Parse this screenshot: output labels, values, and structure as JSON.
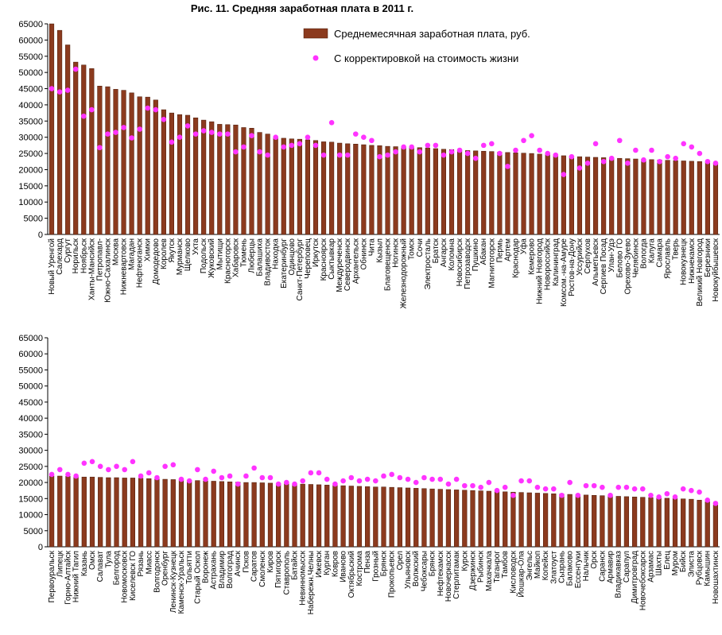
{
  "chart_data": [
    {
      "type": "bar",
      "title": "Рис. 11. Средняя заработная плата в 2011 г.",
      "categories": [
        "Новый Уренгой",
        "Салехард",
        "Сургут",
        "Норильск",
        "Ноябрьск",
        "Ханты-Мансийск",
        "Петропавл-",
        "Южно-Сахалинск",
        "Москва",
        "Нижневартовск",
        "Магадан",
        "Нефтеюганск",
        "Химки",
        "Домодедово",
        "Королев",
        "Якутск",
        "Мурманск",
        "Щелково",
        "Ухта",
        "Подольск",
        "Жуковский",
        "Мытищи",
        "Красногорск",
        "Хабаровск",
        "Тюмень",
        "Люберцы",
        "Балашиха",
        "Владивосток",
        "Находка",
        "Екатеринбург",
        "Одинцово",
        "Санкт-Петербург",
        "Череповец",
        "Иркутск",
        "Красноярск",
        "Сыктывкар",
        "Междуреченск",
        "Северодвинск",
        "Архангельск",
        "Обнинск",
        "Чита",
        "Кызыл",
        "Благовещенск",
        "Ногинск",
        "Железнодорожный",
        "Томск",
        "Сочи",
        "Электросталь",
        "Братск",
        "Ангарск",
        "Коломна",
        "Новосибирск",
        "Петрозаводск",
        "Пушкино",
        "Абакан",
        "Магнитогорск",
        "Пермь",
        "Артем",
        "Краснодар",
        "Уфа",
        "Кемерово",
        "Нижний Новгород",
        "Новороссийск",
        "Калининград",
        "Комсом.-на-Амуре",
        "Ростов-на-Дону",
        "Уссурийск",
        "Серпухов",
        "Альметьевск",
        "Сергиев Посад",
        "Улан-Удэ",
        "Белово ГО",
        "Орехово-Зуево",
        "Челябинск",
        "Вологда",
        "Калуга",
        "Самара",
        "Ярославль",
        "Тверь",
        "Новокузнецк",
        "Нижнекамск",
        "Великий Новгород",
        "Березники",
        "Новокуйбышевск"
      ],
      "series": [
        {
          "name": "Среднемесячная  заработная плата, руб.",
          "color": "#8b3a1e",
          "values": [
            65000,
            63000,
            58500,
            53200,
            52300,
            51200,
            45800,
            45600,
            44800,
            44500,
            43700,
            42500,
            42400,
            41500,
            38500,
            37500,
            37000,
            36800,
            36000,
            35300,
            34800,
            34000,
            33900,
            33800,
            33000,
            32800,
            31500,
            31000,
            30000,
            29700,
            29500,
            29400,
            29200,
            29000,
            28600,
            28500,
            28200,
            28000,
            27900,
            27700,
            27500,
            27400,
            27200,
            27100,
            27000,
            26900,
            26800,
            26700,
            26500,
            26300,
            26200,
            26000,
            25900,
            25800,
            25700,
            25600,
            25400,
            25300,
            25200,
            25100,
            25000,
            24800,
            24700,
            24500,
            24300,
            24200,
            24000,
            23900,
            23800,
            23700,
            23600,
            23500,
            23400,
            23300,
            23200,
            23100,
            23000,
            22900,
            22800,
            22700,
            22600,
            22500,
            22300,
            22000
          ]
        },
        {
          "name": "С корректировкой на стоимость жизни",
          "color": "#ff33ff",
          "type": "scatter",
          "values": [
            45000,
            44000,
            44500,
            51000,
            36500,
            38500,
            26800,
            31000,
            31500,
            33000,
            29800,
            32500,
            39000,
            38500,
            35500,
            28500,
            30000,
            33500,
            31000,
            32000,
            31500,
            31000,
            31000,
            25500,
            27000,
            30500,
            25500,
            24500,
            30000,
            27000,
            27500,
            28000,
            30000,
            27500,
            24500,
            34500,
            24500,
            24500,
            31000,
            30000,
            29000,
            24000,
            24500,
            25500,
            27000,
            27000,
            25500,
            27500,
            27500,
            24500,
            25500,
            26000,
            25000,
            23500,
            27500,
            28000,
            25000,
            21000,
            26000,
            29000,
            30500,
            26000,
            25000,
            24500,
            18500,
            24000,
            20500,
            22000,
            28000,
            22500,
            23500,
            29000,
            22000,
            26000,
            23000,
            26000,
            22500,
            24000,
            23500,
            28000,
            27000,
            25000,
            22500,
            22000
          ]
        }
      ],
      "ylim": [
        0,
        65000
      ],
      "yticks": [
        0,
        5000,
        10000,
        15000,
        20000,
        25000,
        30000,
        35000,
        40000,
        45000,
        50000,
        55000,
        60000,
        65000
      ]
    },
    {
      "type": "bar",
      "categories": [
        "Первоуральск",
        "Липецк",
        "Горно-Алтайск",
        "Нижний Тагил",
        "Казань",
        "Омск",
        "Салават",
        "Тула",
        "Белгород",
        "Новомосковск",
        "Киселевск ГО",
        "Рязань",
        "Миасс",
        "Волгодонск",
        "Оренбург",
        "Ленинск-Кузнецк",
        "Каменск-Уральск",
        "Тольятти",
        "Старый Оскол",
        "Воронеж",
        "Астрахань",
        "Владимир",
        "Волгоград",
        "Ачинск",
        "Псков",
        "Саратов",
        "Смоленск",
        "Киров",
        "Пятигорск",
        "Ставрополь",
        "Батайск",
        "Невинномысск",
        "Набережн.Челны",
        "Ижевск",
        "Курган",
        "Ковров",
        "Иваново",
        "Октябрьский",
        "Кострома",
        "Пенза",
        "Грозный",
        "Брянск",
        "Прокопьевск",
        "Орел",
        "Ульяновск",
        "Волжский",
        "Чебоксары",
        "Брянск",
        "Нефтекамск",
        "Новочеркасск",
        "Стерлитамак",
        "Курск",
        "Дзержинск",
        "Рыбинск",
        "Махачкала",
        "Таганрог",
        "Тамбов",
        "Кисловодск",
        "Йошкар-Ола",
        "Энгельс",
        "Майкоп",
        "Копейск",
        "Златоуст",
        "Сызрань",
        "Балаково",
        "Ессентуки",
        "Нальчик",
        "Орск",
        "Саранск",
        "Армавир",
        "Владикавказ",
        "Сарапул",
        "Димитровград",
        "Новочебоксарск",
        "Арзамас",
        "Шахты",
        "Елец",
        "Муром",
        "Бийск",
        "Элиста",
        "Рубцовск",
        "Камышин",
        "Новошахтинск"
      ],
      "series": [
        {
          "color": "#8b3a1e",
          "values": [
            22000,
            22000,
            21900,
            21800,
            21700,
            21700,
            21600,
            21500,
            21500,
            21400,
            21400,
            21300,
            21200,
            21100,
            21000,
            20900,
            20800,
            20700,
            20600,
            20500,
            20400,
            20300,
            20200,
            20100,
            20000,
            20000,
            19900,
            19800,
            19700,
            19600,
            19500,
            19500,
            19400,
            19300,
            19200,
            19100,
            19000,
            18900,
            18800,
            18700,
            18600,
            18600,
            18500,
            18400,
            18300,
            18200,
            18100,
            18000,
            17900,
            17800,
            17700,
            17600,
            17500,
            17400,
            17300,
            17200,
            17100,
            17000,
            16900,
            16800,
            16700,
            16600,
            16500,
            16400,
            16300,
            16200,
            16100,
            16000,
            15900,
            15800,
            15700,
            15600,
            15500,
            15400,
            15300,
            15200,
            15100,
            15000,
            14900,
            14800,
            14500,
            14000,
            13000
          ]
        },
        {
          "color": "#ff33ff",
          "type": "scatter",
          "values": [
            22500,
            24000,
            22500,
            22000,
            26000,
            26500,
            25000,
            24000,
            25000,
            24000,
            26500,
            22000,
            23000,
            21500,
            25000,
            25500,
            21000,
            20500,
            24000,
            21000,
            23500,
            21500,
            22000,
            19500,
            22000,
            24500,
            21500,
            21500,
            19500,
            20000,
            19500,
            20500,
            23000,
            23000,
            21000,
            19500,
            20500,
            21500,
            20500,
            21000,
            20500,
            22000,
            22500,
            21500,
            21000,
            20000,
            21500,
            21000,
            21000,
            19500,
            21000,
            19000,
            19000,
            18500,
            20000,
            17500,
            18500,
            16000,
            20500,
            20500,
            18500,
            18000,
            18000,
            16000,
            20000,
            16000,
            19000,
            19000,
            18500,
            16000,
            18500,
            18500,
            18000,
            18000,
            16000,
            15500,
            16500,
            15500,
            18000,
            17500,
            17000,
            14500,
            13500
          ]
        }
      ],
      "ylim": [
        0,
        65000
      ],
      "yticks": [
        0,
        5000,
        10000,
        15000,
        20000,
        25000,
        30000,
        35000,
        40000,
        45000,
        50000,
        55000,
        60000,
        65000
      ]
    }
  ]
}
